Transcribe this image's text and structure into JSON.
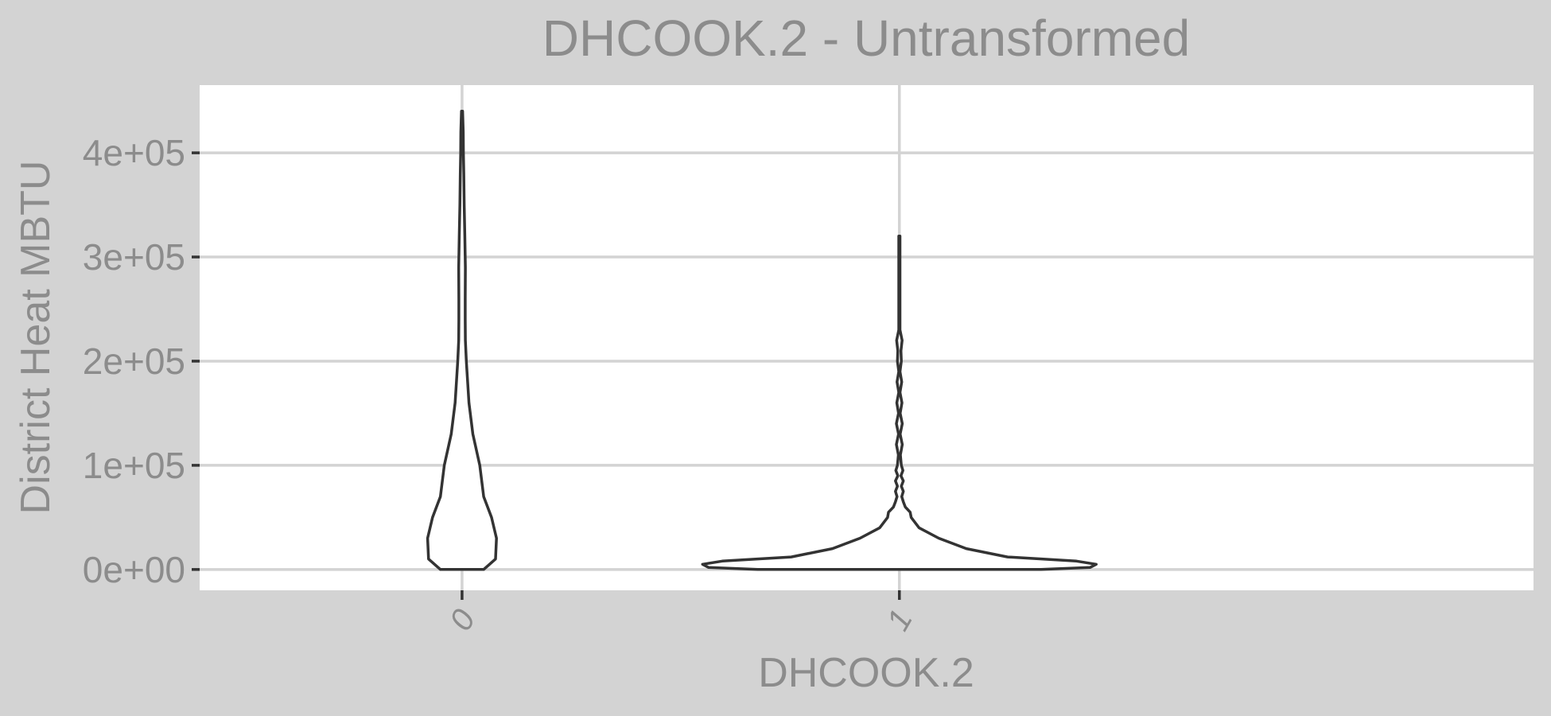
{
  "chart_data": {
    "type": "violin",
    "title": "DHCOOK.2 - Untransformed",
    "xlabel": "DHCOOK.2",
    "ylabel": "District Heat MBTU",
    "categories": [
      "0",
      "1"
    ],
    "ylim": [
      -20000,
      465000
    ],
    "y_ticks": [
      0,
      100000,
      200000,
      300000,
      400000
    ],
    "y_tick_labels": [
      "0e+00",
      "1e+05",
      "2e+05",
      "3e+05",
      "4e+05"
    ],
    "grid": true,
    "colors": {
      "background": "#d3d3d3",
      "panel": "#ffffff",
      "grid": "#d3d3d3",
      "outline": "#333333",
      "text": "#8c8c8c"
    },
    "violins": [
      {
        "category": "0",
        "min": 0,
        "max": 440000,
        "profile": [
          [
            0,
            0.11
          ],
          [
            10000,
            0.17
          ],
          [
            30000,
            0.175
          ],
          [
            50000,
            0.15
          ],
          [
            70000,
            0.11
          ],
          [
            100000,
            0.09
          ],
          [
            130000,
            0.055
          ],
          [
            160000,
            0.035
          ],
          [
            200000,
            0.022
          ],
          [
            220000,
            0.017
          ],
          [
            240000,
            0.016
          ],
          [
            260000,
            0.016
          ],
          [
            290000,
            0.017
          ],
          [
            320000,
            0.014
          ],
          [
            350000,
            0.011
          ],
          [
            380000,
            0.009
          ],
          [
            400000,
            0.007
          ],
          [
            420000,
            0.006
          ],
          [
            440000,
            0.003
          ]
        ]
      },
      {
        "category": "1",
        "min": 0,
        "max": 320000,
        "profile": [
          [
            0,
            0.72
          ],
          [
            2000,
            0.97
          ],
          [
            5000,
            1.0
          ],
          [
            8000,
            0.9
          ],
          [
            12000,
            0.55
          ],
          [
            20000,
            0.34
          ],
          [
            30000,
            0.2
          ],
          [
            40000,
            0.1
          ],
          [
            50000,
            0.06
          ],
          [
            55000,
            0.055
          ],
          [
            60000,
            0.03
          ],
          [
            65000,
            0.02
          ],
          [
            70000,
            0.012
          ],
          [
            75000,
            0.02
          ],
          [
            80000,
            0.01
          ],
          [
            85000,
            0.02
          ],
          [
            90000,
            0.008
          ],
          [
            95000,
            0.018
          ],
          [
            100000,
            0.01
          ],
          [
            110000,
            0.005
          ],
          [
            120000,
            0.015
          ],
          [
            130000,
            0.004
          ],
          [
            140000,
            0.015
          ],
          [
            150000,
            0.004
          ],
          [
            160000,
            0.013
          ],
          [
            170000,
            0.003
          ],
          [
            180000,
            0.012
          ],
          [
            190000,
            0.003
          ],
          [
            200000,
            0.01
          ],
          [
            210000,
            0.008
          ],
          [
            220000,
            0.014
          ],
          [
            230000,
            0.003
          ],
          [
            250000,
            0.003
          ],
          [
            280000,
            0.003
          ],
          [
            300000,
            0.003
          ],
          [
            320000,
            0.003
          ]
        ]
      }
    ]
  }
}
